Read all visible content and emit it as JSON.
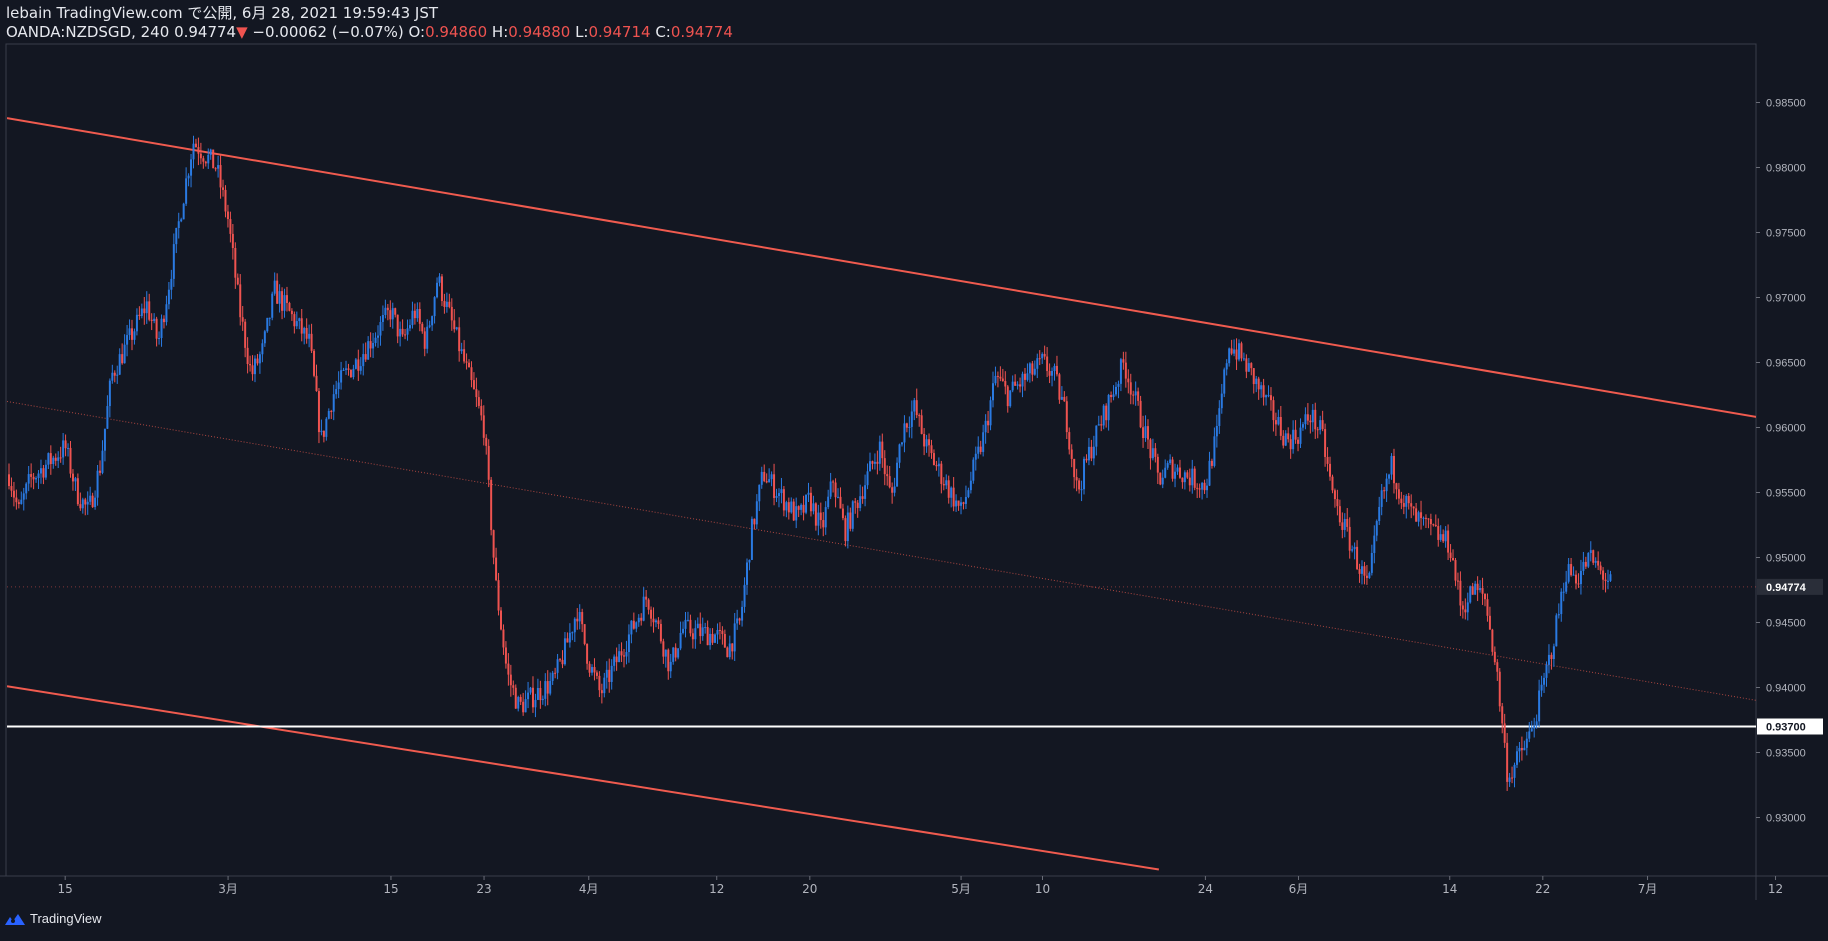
{
  "header": {
    "publish_line": "lebain TradingView.com で公開, 6月 28, 2021 19:59:43 JST",
    "symbol": "OANDA:NZDSGD, 240",
    "last": "0.94774",
    "change_arrow": "▼",
    "change": "−0.00062 (−0.07%)",
    "o_label": "O:",
    "o": "0.94860",
    "h_label": "H:",
    "h": "0.94880",
    "l_label": "L:",
    "l": "0.94714",
    "c_label": "C:",
    "c": "0.94774"
  },
  "footer": {
    "brand": "TradingView",
    "logo_icon": "tradingview-logo-icon"
  },
  "colors": {
    "background": "#131722",
    "up": "#2a7ae2",
    "down": "#ef5350",
    "channel": "#f05b4f",
    "support": "#ffffff",
    "price_badge_bg": "#ffffff",
    "grid": "#2a2e39"
  },
  "chart_data": {
    "type": "candlestick",
    "symbol": "OANDA:NZDSGD",
    "interval": "240",
    "ylim": [
      0.9255,
      0.9895
    ],
    "y_ticks": [
      "0.98500",
      "0.98000",
      "0.97500",
      "0.97000",
      "0.96500",
      "0.96000",
      "0.95500",
      "0.95000",
      "0.94500",
      "0.94000",
      "0.93500",
      "0.93000"
    ],
    "x_ticks": [
      {
        "label": "15",
        "date": "2021-02-15"
      },
      {
        "label": "3月",
        "date": "2021-03-01"
      },
      {
        "label": "15",
        "date": "2021-03-15"
      },
      {
        "label": "23",
        "date": "2021-03-23"
      },
      {
        "label": "4月",
        "date": "2021-04-01"
      },
      {
        "label": "12",
        "date": "2021-04-12"
      },
      {
        "label": "20",
        "date": "2021-04-20"
      },
      {
        "label": "5月",
        "date": "2021-05-03"
      },
      {
        "label": "10",
        "date": "2021-05-10"
      },
      {
        "label": "24",
        "date": "2021-05-24"
      },
      {
        "label": "6月",
        "date": "2021-06-01"
      },
      {
        "label": "14",
        "date": "2021-06-14"
      },
      {
        "label": "22",
        "date": "2021-06-22"
      },
      {
        "label": "7月",
        "date": "2021-07-01"
      },
      {
        "label": "12",
        "date": "2021-07-12"
      }
    ],
    "price_path": [
      [
        "2021-02-10",
        0.957
      ],
      [
        "2021-02-11",
        0.9535
      ],
      [
        "2021-02-12",
        0.956
      ],
      [
        "2021-02-15",
        0.9585
      ],
      [
        "2021-02-16",
        0.955
      ],
      [
        "2021-02-17",
        0.9535
      ],
      [
        "2021-02-18",
        0.957
      ],
      [
        "2021-02-19",
        0.964
      ],
      [
        "2021-02-22",
        0.9695
      ],
      [
        "2021-02-23",
        0.9665
      ],
      [
        "2021-02-24",
        0.9715
      ],
      [
        "2021-02-25",
        0.977
      ],
      [
        "2021-02-26",
        0.982
      ],
      [
        "2021-02-28",
        0.98
      ],
      [
        "2021-03-01",
        0.976
      ],
      [
        "2021-03-02",
        0.969
      ],
      [
        "2021-03-03",
        0.964
      ],
      [
        "2021-03-04",
        0.966
      ],
      [
        "2021-03-05",
        0.9705
      ],
      [
        "2021-03-08",
        0.9665
      ],
      [
        "2021-03-09",
        0.959
      ],
      [
        "2021-03-10",
        0.9625
      ],
      [
        "2021-03-11",
        0.964
      ],
      [
        "2021-03-12",
        0.965
      ],
      [
        "2021-03-15",
        0.969
      ],
      [
        "2021-03-16",
        0.9665
      ],
      [
        "2021-03-17",
        0.969
      ],
      [
        "2021-03-18",
        0.9665
      ],
      [
        "2021-03-19",
        0.9715
      ],
      [
        "2021-03-22",
        0.963
      ],
      [
        "2021-03-23",
        0.96
      ],
      [
        "2021-03-24",
        0.948
      ],
      [
        "2021-03-25",
        0.941
      ],
      [
        "2021-03-26",
        0.9385
      ],
      [
        "2021-03-29",
        0.9405
      ],
      [
        "2021-03-30",
        0.943
      ],
      [
        "2021-03-31",
        0.946
      ],
      [
        "2021-04-01",
        0.942
      ],
      [
        "2021-04-02",
        0.9395
      ],
      [
        "2021-04-05",
        0.945
      ],
      [
        "2021-04-06",
        0.947
      ],
      [
        "2021-04-07",
        0.9445
      ],
      [
        "2021-04-08",
        0.9415
      ],
      [
        "2021-04-09",
        0.9445
      ],
      [
        "2021-04-12",
        0.944
      ],
      [
        "2021-04-13",
        0.943
      ],
      [
        "2021-04-14",
        0.945
      ],
      [
        "2021-04-15",
        0.952
      ],
      [
        "2021-04-16",
        0.9565
      ],
      [
        "2021-04-19",
        0.953
      ],
      [
        "2021-04-20",
        0.9545
      ],
      [
        "2021-04-21",
        0.952
      ],
      [
        "2021-04-22",
        0.956
      ],
      [
        "2021-04-23",
        0.952
      ],
      [
        "2021-04-26",
        0.9585
      ],
      [
        "2021-04-27",
        0.9545
      ],
      [
        "2021-04-28",
        0.96
      ],
      [
        "2021-04-29",
        0.9615
      ],
      [
        "2021-04-30",
        0.9585
      ],
      [
        "2021-05-03",
        0.9535
      ],
      [
        "2021-05-04",
        0.9565
      ],
      [
        "2021-05-05",
        0.9595
      ],
      [
        "2021-05-06",
        0.964
      ],
      [
        "2021-05-07",
        0.9625
      ],
      [
        "2021-05-10",
        0.965
      ],
      [
        "2021-05-11",
        0.964
      ],
      [
        "2021-05-12",
        0.961
      ],
      [
        "2021-05-13",
        0.955
      ],
      [
        "2021-05-14",
        0.958
      ],
      [
        "2021-05-17",
        0.965
      ],
      [
        "2021-05-18",
        0.962
      ],
      [
        "2021-05-19",
        0.959
      ],
      [
        "2021-05-20",
        0.956
      ],
      [
        "2021-05-21",
        0.957
      ],
      [
        "2021-05-24",
        0.9555
      ],
      [
        "2021-05-25",
        0.9595
      ],
      [
        "2021-05-26",
        0.9665
      ],
      [
        "2021-05-27",
        0.9655
      ],
      [
        "2021-05-28",
        0.964
      ],
      [
        "2021-05-31",
        0.959
      ],
      [
        "2021-06-01",
        0.9595
      ],
      [
        "2021-06-02",
        0.961
      ],
      [
        "2021-06-03",
        0.9595
      ],
      [
        "2021-06-04",
        0.9545
      ],
      [
        "2021-06-07",
        0.9475
      ],
      [
        "2021-06-08",
        0.954
      ],
      [
        "2021-06-09",
        0.957
      ],
      [
        "2021-06-10",
        0.9545
      ],
      [
        "2021-06-11",
        0.953
      ],
      [
        "2021-06-14",
        0.951
      ],
      [
        "2021-06-15",
        0.946
      ],
      [
        "2021-06-16",
        0.9475
      ],
      [
        "2021-06-17",
        0.947
      ],
      [
        "2021-06-18",
        0.9415
      ],
      [
        "2021-06-19",
        0.933
      ],
      [
        "2021-06-21",
        0.9365
      ],
      [
        "2021-06-22",
        0.94
      ],
      [
        "2021-06-23",
        0.944
      ],
      [
        "2021-06-24",
        0.949
      ],
      [
        "2021-06-25",
        0.9485
      ],
      [
        "2021-06-26",
        0.95
      ],
      [
        "2021-06-28",
        0.94774
      ]
    ],
    "current_price": "0.94774",
    "lines": [
      {
        "name": "channel-upper",
        "style": "solid",
        "points": [
          [
            "2021-02-10",
            0.9838
          ],
          [
            "2021-07-15",
            0.9601
          ]
        ]
      },
      {
        "name": "channel-lower",
        "style": "solid",
        "points": [
          [
            "2021-02-10",
            0.9401
          ],
          [
            "2021-05-20",
            0.926
          ]
        ]
      },
      {
        "name": "channel-mid",
        "style": "dotted",
        "points": [
          [
            "2021-02-10",
            0.962
          ],
          [
            "2021-07-15",
            0.9383
          ]
        ]
      },
      {
        "name": "support",
        "style": "solid",
        "price": "0.93700",
        "value": 0.937
      }
    ]
  }
}
